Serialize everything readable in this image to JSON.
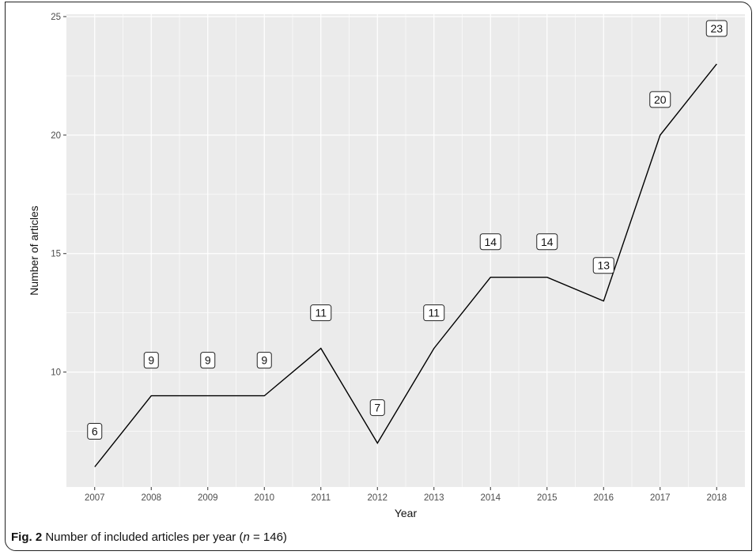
{
  "caption": {
    "fig_label": "Fig. 2",
    "text_before": "Number of included articles per year (",
    "n_symbol": "n",
    "text_after": " = 146)"
  },
  "chart_data": {
    "type": "line",
    "x": [
      2007,
      2008,
      2009,
      2010,
      2011,
      2012,
      2013,
      2014,
      2015,
      2016,
      2017,
      2018
    ],
    "series": [
      {
        "values": [
          6,
          9,
          9,
          9,
          11,
          7,
          11,
          14,
          14,
          13,
          20,
          23
        ]
      }
    ],
    "data_labels": [
      "6",
      "9",
      "9",
      "9",
      "11",
      "7",
      "11",
      "14",
      "14",
      "13",
      "20",
      "23"
    ],
    "xlabel": "Year",
    "ylabel": "Number of articles",
    "xlim": [
      2006.5,
      2018.5
    ],
    "ylim": [
      5.15,
      25.1
    ],
    "y_ticks": [
      10,
      15,
      20,
      25
    ],
    "x_ticks": [
      2007,
      2008,
      2009,
      2010,
      2011,
      2012,
      2013,
      2014,
      2015,
      2016,
      2017,
      2018
    ],
    "grid": true,
    "panel_background": "#ebebeb",
    "grid_color": "#ffffff",
    "line_color": "#000000"
  }
}
